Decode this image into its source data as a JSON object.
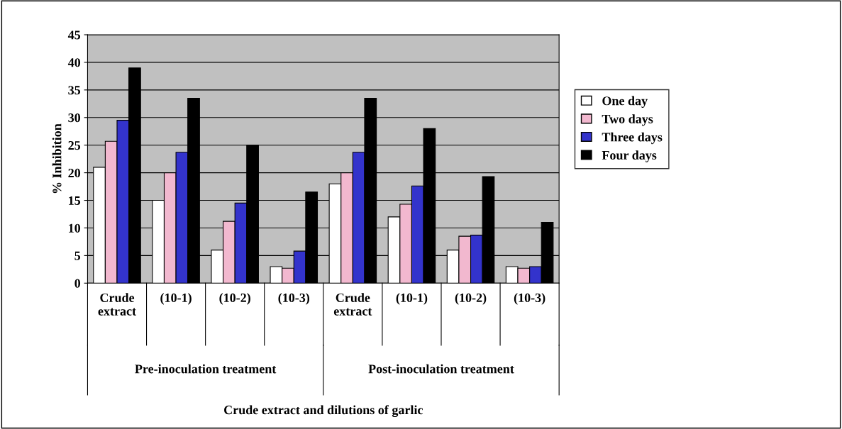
{
  "chart_data": {
    "type": "bar",
    "ylabel": "% Inhibition",
    "categories": [
      "Crude\nextract",
      "(10-1)",
      "(10-2)",
      "(10-3)",
      "Crude\nextract",
      "(10-1)",
      "(10-2)",
      "(10-3)"
    ],
    "series": [
      {
        "name": "One day",
        "color": "#ffffff",
        "values": [
          21,
          15,
          6,
          3,
          18,
          12,
          6,
          3
        ]
      },
      {
        "name": "Two days",
        "color": "#f2b8cf",
        "values": [
          25.7,
          20,
          11.2,
          2.7,
          20,
          14.3,
          8.5,
          2.7
        ]
      },
      {
        "name": "Three days",
        "color": "#3333cc",
        "values": [
          29.5,
          23.7,
          14.5,
          5.8,
          23.7,
          17.6,
          8.7,
          3
        ]
      },
      {
        "name": "Four days",
        "color": "#000000",
        "values": [
          39,
          33.5,
          25,
          16.5,
          33.5,
          28,
          19.3,
          11
        ]
      }
    ],
    "annotations": [
      "Pre-inoculation treatment",
      "Post-inoculation treatment",
      "Crude extract and dilutions of garlic"
    ],
    "ylim": [
      0,
      45
    ],
    "yticks": [
      0,
      5,
      10,
      15,
      20,
      25,
      30,
      35,
      40,
      45
    ],
    "grid": "y",
    "legend": "right"
  }
}
